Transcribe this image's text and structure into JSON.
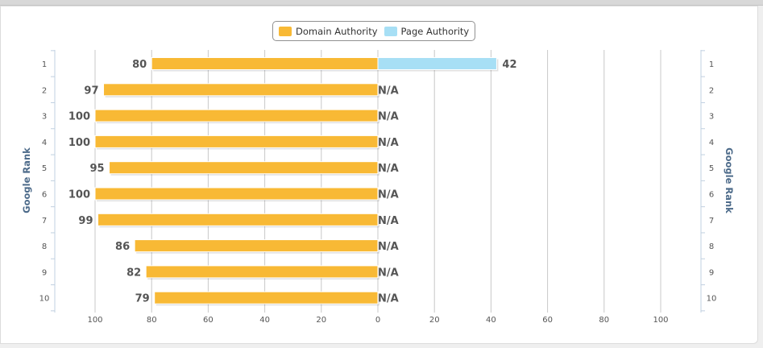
{
  "chart_data": {
    "type": "bar",
    "orientation": "horizontal-diverging",
    "categories": [
      "1",
      "2",
      "3",
      "4",
      "5",
      "6",
      "7",
      "8",
      "9",
      "10"
    ],
    "series": [
      {
        "name": "Domain Authority",
        "color": "#f8b935",
        "values": [
          80,
          97,
          100,
          100,
          95,
          100,
          99,
          86,
          82,
          79
        ]
      },
      {
        "name": "Page Authority",
        "color": "#a7dff5",
        "values": [
          42,
          null,
          null,
          null,
          null,
          null,
          null,
          null,
          null,
          null
        ]
      }
    ],
    "value_labels_left": [
      "80",
      "97",
      "100",
      "100",
      "95",
      "100",
      "99",
      "86",
      "82",
      "79"
    ],
    "value_labels_right": [
      "42",
      "N/A",
      "N/A",
      "N/A",
      "N/A",
      "N/A",
      "N/A",
      "N/A",
      "N/A",
      "N/A"
    ],
    "x_ticks": [
      "100",
      "80",
      "60",
      "40",
      "20",
      "0",
      "20",
      "40",
      "60",
      "80",
      "100"
    ],
    "xlim": [
      -100,
      100
    ],
    "y_axis_title_left": "Google Rank",
    "y_axis_title_right": "Google Rank",
    "legend_position": "top-center",
    "grid": true
  }
}
